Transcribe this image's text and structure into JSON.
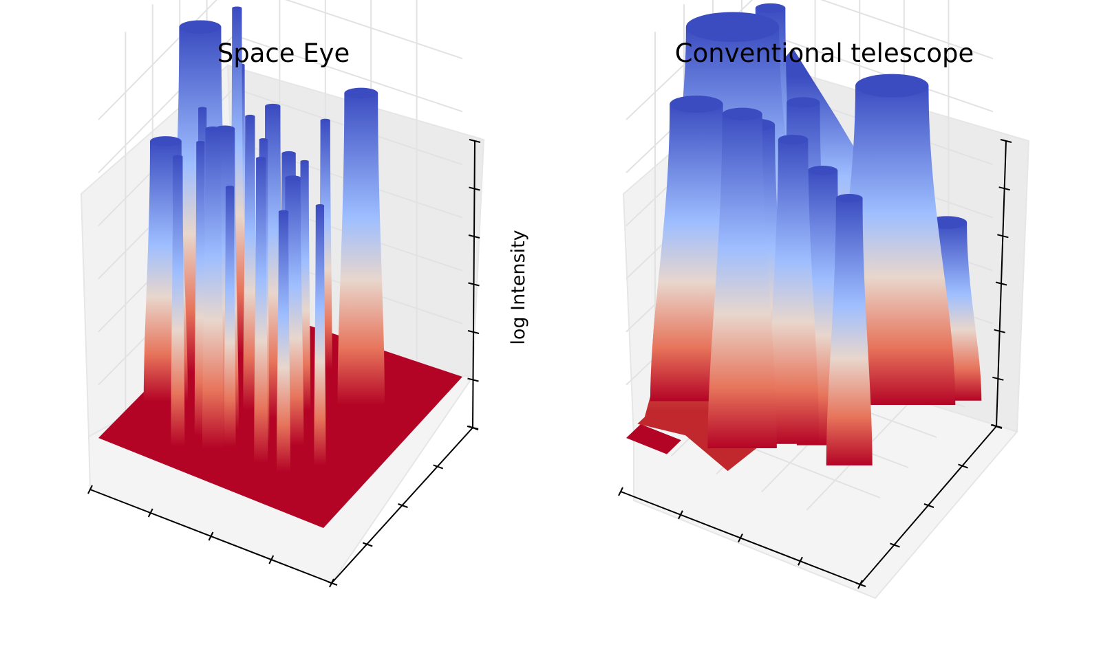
{
  "chart_data": [
    {
      "type": "surface3d",
      "title": "Space Eye",
      "xlabel": "",
      "ylabel": "",
      "zlabel": "log Intensity",
      "tick_labels_shown": false,
      "colormap": "coolwarm",
      "colormap_low": "#b40426",
      "colormap_mid": "#dddcdc",
      "colormap_high": "#3b4cc0",
      "grid": true,
      "x_ticks": 5,
      "y_ticks": 5,
      "z_ticks": 7,
      "xlim": [
        0,
        1
      ],
      "ylim": [
        0,
        1
      ],
      "zlim": [
        0,
        1
      ],
      "floor_level": 0.0,
      "peaks": [
        {
          "x": 0.12,
          "y": 0.55,
          "height": 0.93,
          "radius": 0.06
        },
        {
          "x": 0.1,
          "y": 0.33,
          "height": 0.7,
          "radius": 0.045
        },
        {
          "x": 0.18,
          "y": 0.72,
          "height": 0.93,
          "radius": 0.014
        },
        {
          "x": 0.05,
          "y": 0.7,
          "height": 0.79,
          "radius": 0.014
        },
        {
          "x": 0.1,
          "y": 0.88,
          "height": 0.7,
          "radius": 0.012
        },
        {
          "x": 0.22,
          "y": 0.4,
          "height": 0.79,
          "radius": 0.012
        },
        {
          "x": 0.28,
          "y": 0.12,
          "height": 0.78,
          "radius": 0.014
        },
        {
          "x": 0.4,
          "y": 0.45,
          "height": 0.79,
          "radius": 0.014
        },
        {
          "x": 0.32,
          "y": 0.22,
          "height": 0.79,
          "radius": 0.012
        },
        {
          "x": 0.38,
          "y": 0.3,
          "height": 0.81,
          "radius": 0.028
        },
        {
          "x": 0.4,
          "y": 0.18,
          "height": 0.86,
          "radius": 0.022
        },
        {
          "x": 0.55,
          "y": 0.3,
          "height": 0.82,
          "radius": 0.012
        },
        {
          "x": 0.5,
          "y": 0.45,
          "height": 0.84,
          "radius": 0.022
        },
        {
          "x": 0.6,
          "y": 0.2,
          "height": 0.82,
          "radius": 0.014
        },
        {
          "x": 0.65,
          "y": 0.35,
          "height": 0.72,
          "radius": 0.022
        },
        {
          "x": 0.7,
          "y": 0.2,
          "height": 0.7,
          "radius": 0.014
        },
        {
          "x": 0.48,
          "y": 0.6,
          "height": 0.65,
          "radius": 0.02
        },
        {
          "x": 0.52,
          "y": 0.8,
          "height": 0.67,
          "radius": 0.014
        },
        {
          "x": 0.75,
          "y": 0.68,
          "height": 0.84,
          "radius": 0.048
        },
        {
          "x": 0.8,
          "y": 0.3,
          "height": 0.7,
          "radius": 0.012
        },
        {
          "x": 0.58,
          "y": 0.55,
          "height": 0.67,
          "radius": 0.012
        },
        {
          "x": 0.45,
          "y": 0.22,
          "height": 0.7,
          "radius": 0.012
        }
      ]
    },
    {
      "type": "surface3d",
      "title": "Conventional telescope",
      "xlabel": "",
      "ylabel": "",
      "zlabel": "",
      "tick_labels_shown": false,
      "colormap": "coolwarm",
      "colormap_low": "#b40426",
      "colormap_mid": "#dddcdc",
      "colormap_high": "#3b4cc0",
      "grid": true,
      "x_ticks": 5,
      "y_ticks": 5,
      "z_ticks": 7,
      "xlim": [
        0,
        1
      ],
      "ylim": [
        0,
        1
      ],
      "zlim": [
        0,
        1
      ],
      "floor_level": 0.0,
      "peaks": [
        {
          "x": 0.12,
          "y": 0.55,
          "height": 0.93,
          "radius": 0.14
        },
        {
          "x": 0.1,
          "y": 0.33,
          "height": 0.8,
          "radius": 0.08
        },
        {
          "x": 0.18,
          "y": 0.72,
          "height": 0.93,
          "radius": 0.045
        },
        {
          "x": 0.05,
          "y": 0.7,
          "height": 0.8,
          "radius": 0.04
        },
        {
          "x": 0.4,
          "y": 0.18,
          "height": 0.9,
          "radius": 0.06
        },
        {
          "x": 0.38,
          "y": 0.3,
          "height": 0.82,
          "radius": 0.06
        },
        {
          "x": 0.55,
          "y": 0.3,
          "height": 0.82,
          "radius": 0.045
        },
        {
          "x": 0.5,
          "y": 0.45,
          "height": 0.85,
          "radius": 0.05
        },
        {
          "x": 0.65,
          "y": 0.35,
          "height": 0.74,
          "radius": 0.045
        },
        {
          "x": 0.75,
          "y": 0.68,
          "height": 0.86,
          "radius": 0.11
        },
        {
          "x": 0.8,
          "y": 0.3,
          "height": 0.72,
          "radius": 0.04
        },
        {
          "x": 0.92,
          "y": 0.8,
          "height": 0.48,
          "radius": 0.06
        }
      ]
    }
  ]
}
